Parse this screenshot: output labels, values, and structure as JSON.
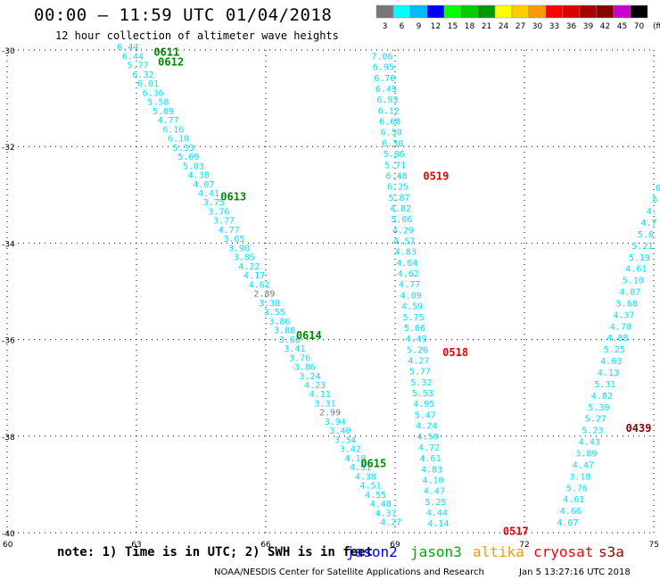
{
  "header": {
    "title": "00:00 – 11:59 UTC 01/04/2018",
    "subtitle": "12 hour collection of altimeter wave heights"
  },
  "footer": {
    "note": "note:  1) Time is in UTC; 2) SWH is in feet",
    "credit": "NOAA/NESDIS Center for Satellite Applications and Research",
    "timestamp": "Jan  5 13:27:16 UTC 2018",
    "satellites": [
      {
        "label": "jason2",
        "color": "#0000ff"
      },
      {
        "label": "jason3",
        "color": "#00aa00"
      },
      {
        "label": "altika",
        "color": "#ff9900"
      },
      {
        "label": "cryosat",
        "color": "#ff0000"
      },
      {
        "label": "s3a",
        "color": "#990000"
      }
    ]
  },
  "legend": {
    "unit": "(ft)",
    "bins": [
      {
        "label": "3",
        "color": "#777777"
      },
      {
        "label": "6",
        "color": "#00ffff"
      },
      {
        "label": "9",
        "color": "#00bbff"
      },
      {
        "label": "12",
        "color": "#0000ff"
      },
      {
        "label": "15",
        "color": "#00ff00"
      },
      {
        "label": "18",
        "color": "#00cc00"
      },
      {
        "label": "21",
        "color": "#009900"
      },
      {
        "label": "24",
        "color": "#ffff00"
      },
      {
        "label": "27",
        "color": "#ffcc00"
      },
      {
        "label": "30",
        "color": "#ff9900"
      },
      {
        "label": "33",
        "color": "#ff0000"
      },
      {
        "label": "36",
        "color": "#dd0000"
      },
      {
        "label": "39",
        "color": "#aa0000"
      },
      {
        "label": "42",
        "color": "#880000"
      },
      {
        "label": "45",
        "color": "#cc00cc"
      },
      {
        "label": "70",
        "color": "#000000"
      }
    ]
  },
  "chart_data": {
    "type": "scatter",
    "xlim": [
      60,
      75
    ],
    "ylim": [
      -40,
      -30
    ],
    "x_ticks": [
      "60",
      "63",
      "66",
      "69",
      "72",
      "75"
    ],
    "y_ticks": [
      "-30",
      "-32",
      "-34",
      "-36",
      "-38",
      "-40"
    ],
    "grid": true,
    "colors": {
      "low": "#00e0ff",
      "very_low": "#777777",
      "jason3": "#008800",
      "cryosat": "#ee0000",
      "s3a": "#880000"
    },
    "tracks": [
      {
        "name": "track-a",
        "start": [
          62.8,
          -29.93
        ],
        "end": [
          68.9,
          -39.77
        ],
        "values": [
          "6.44",
          "6.44",
          "5.77",
          "6.32",
          "6.01",
          "6.36",
          "5.58",
          "5.09",
          "4.77",
          "6.16",
          "6.10",
          "5.33",
          "5.09",
          "5.03",
          "4.38",
          "4.07",
          "4.41",
          "3.75",
          "3.76",
          "3.77",
          "4.77",
          "3.65",
          "3.90",
          "3.85",
          "4.22",
          "4.17",
          "4.61",
          "2.89",
          "3.38",
          "3.55",
          "3.86",
          "3.88",
          "3.66",
          "3.41",
          "3.76",
          "3.86",
          "3.24",
          "4.23",
          "4.11",
          "3.31",
          "2.99",
          "3.94",
          "3.40",
          "3.34",
          "3.42",
          "4.10",
          "4.91",
          "4.38",
          "4.51",
          "4.55",
          "4.40",
          "4.37",
          "4.27"
        ]
      },
      {
        "name": "track-b",
        "start": [
          68.7,
          -30.12
        ],
        "end": [
          70.0,
          -39.8
        ],
        "values": [
          "7.06",
          "6.95",
          "6.70",
          "6.49",
          "6.93",
          "6.12",
          "6.68",
          "6.50",
          "6.30",
          "5.86",
          "5.71",
          "6.48",
          "6.25",
          "5.87",
          "4.82",
          "5.06",
          "4.29",
          "4.57",
          "4.83",
          "4.64",
          "4.62",
          "4.77",
          "4.09",
          "4.59",
          "5.75",
          "5.06",
          "4.49",
          "5.26",
          "4.27",
          "5.77",
          "5.32",
          "5.53",
          "4.95",
          "5.47",
          "4.24",
          "4.50",
          "4.72",
          "4.61",
          "4.83",
          "4.10",
          "4.47",
          "5.25",
          "4.44",
          "4.14"
        ]
      },
      {
        "name": "track-c",
        "start": [
          75.1,
          -32.85
        ],
        "end": [
          73.0,
          -39.78
        ],
        "values": [
          "6",
          "5",
          "4.",
          "4.7",
          "5.6",
          "5.21",
          "5.19",
          "4.61",
          "5.10",
          "4.07",
          "5.68",
          "4.37",
          "4.78",
          "4.88",
          "5.25",
          "4.03",
          "4.13",
          "5.31",
          "4.82",
          "5.39",
          "5.27",
          "5.23",
          "4.43",
          "3.89",
          "4.47",
          "3.18",
          "5.76",
          "4.61",
          "4.66",
          "4.07"
        ]
      }
    ],
    "pass_labels": [
      {
        "text": "0611",
        "satellite": "jason3",
        "x": 63.4,
        "y": -30.03
      },
      {
        "text": "0612",
        "satellite": "jason3",
        "x": 63.5,
        "y": -30.23
      },
      {
        "text": "0613",
        "satellite": "jason3",
        "x": 64.95,
        "y": -33.02
      },
      {
        "text": "0614",
        "satellite": "jason3",
        "x": 66.7,
        "y": -35.9
      },
      {
        "text": "0615",
        "satellite": "jason3",
        "x": 68.2,
        "y": -38.55
      },
      {
        "text": "0519",
        "satellite": "cryosat",
        "x": 69.65,
        "y": -32.6
      },
      {
        "text": "0518",
        "satellite": "cryosat",
        "x": 70.1,
        "y": -36.25
      },
      {
        "text": "0517",
        "satellite": "cryosat",
        "x": 71.5,
        "y": -39.95
      },
      {
        "text": "0439",
        "satellite": "s3a",
        "x": 74.35,
        "y": -37.82
      }
    ]
  }
}
